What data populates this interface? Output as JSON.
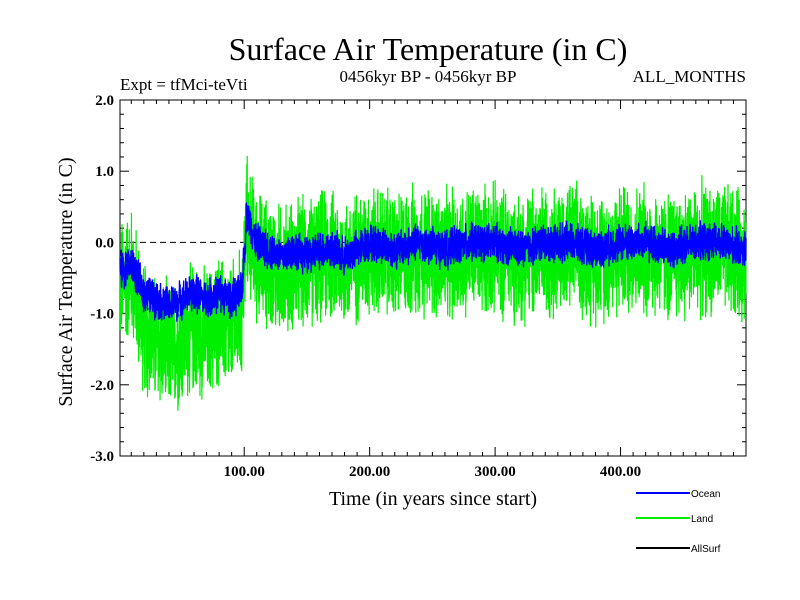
{
  "chart_data": {
    "type": "line",
    "title": "Surface Air Temperature (in C)",
    "subtitle_left": "Expt = tfMci-teVti",
    "subtitle_center": "0456kyr BP - 0456kyr BP",
    "subtitle_right": "ALL_MONTHS",
    "xlabel": "Time (in years since start)",
    "ylabel": "Surface Air Temperature (in C)",
    "xlim": [
      1,
      500
    ],
    "ylim": [
      -3.0,
      2.0
    ],
    "x_ticks": [
      100,
      200,
      300,
      400
    ],
    "x_tick_labels": [
      "100.00",
      "200.00",
      "300.00",
      "400.00"
    ],
    "y_ticks": [
      -3.0,
      -2.0,
      -1.0,
      0.0,
      1.0,
      2.0
    ],
    "y_tick_labels": [
      "-3.0",
      "-2.0",
      "-1.0",
      "0.0",
      "1.0",
      "2.0"
    ],
    "reference_line": 0.0,
    "legend_position": "bottom-right",
    "series": [
      {
        "name": "Ocean",
        "color": "#0000ff",
        "x": [
          1,
          10,
          20,
          30,
          40,
          50,
          60,
          70,
          80,
          90,
          98,
          102,
          110,
          120,
          130,
          140,
          150,
          160,
          170,
          180,
          190,
          200,
          220,
          240,
          260,
          280,
          300,
          320,
          340,
          360,
          380,
          400,
          420,
          440,
          460,
          480,
          500
        ],
        "values": [
          -0.4,
          -0.3,
          -0.7,
          -0.8,
          -0.9,
          -0.8,
          -0.7,
          -0.8,
          -0.7,
          -0.8,
          -0.7,
          0.4,
          0.0,
          -0.1,
          -0.2,
          -0.1,
          -0.2,
          -0.1,
          -0.1,
          -0.2,
          -0.1,
          0.0,
          -0.1,
          0.0,
          -0.1,
          0.0,
          0.0,
          -0.1,
          0.0,
          0.0,
          -0.1,
          0.0,
          0.0,
          -0.1,
          0.0,
          0.0,
          -0.1
        ]
      },
      {
        "name": "Land",
        "color": "#00ee00",
        "x": [
          1,
          10,
          20,
          30,
          40,
          50,
          60,
          70,
          80,
          90,
          98,
          102,
          110,
          120,
          130,
          140,
          150,
          160,
          170,
          180,
          190,
          200,
          220,
          240,
          260,
          280,
          300,
          320,
          340,
          360,
          380,
          400,
          420,
          440,
          460,
          480,
          500
        ],
        "values": [
          -0.6,
          -0.4,
          -1.2,
          -1.4,
          -1.5,
          -1.4,
          -1.2,
          -1.3,
          -1.1,
          -1.2,
          -1.0,
          0.3,
          -0.2,
          -0.3,
          -0.4,
          -0.3,
          -0.3,
          -0.2,
          -0.2,
          -0.3,
          -0.2,
          -0.1,
          -0.2,
          -0.1,
          -0.2,
          -0.1,
          -0.1,
          -0.2,
          -0.1,
          -0.1,
          -0.2,
          -0.1,
          -0.1,
          -0.2,
          -0.1,
          -0.1,
          -0.2
        ]
      },
      {
        "name": "AllSurf",
        "color": "#000000",
        "x": [],
        "values": []
      }
    ]
  }
}
